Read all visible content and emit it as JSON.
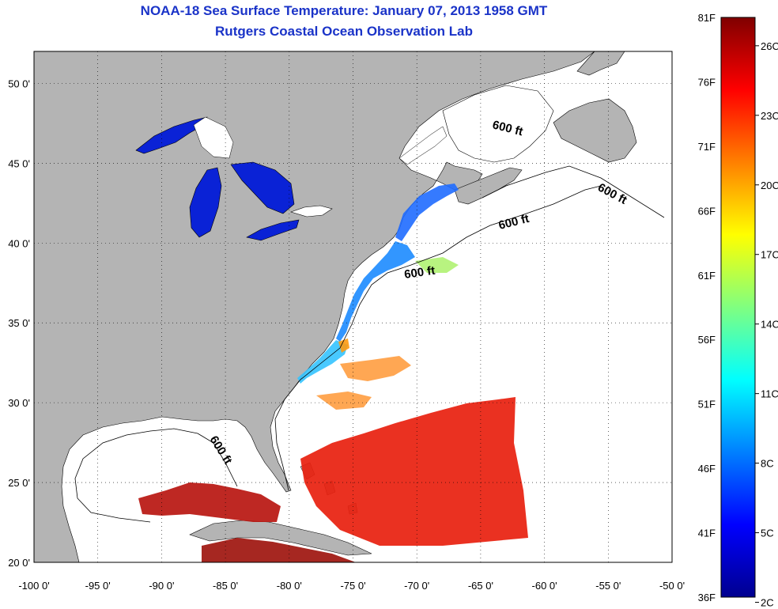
{
  "header": {
    "title": "NOAA-18 Sea Surface Temperature:  January 07, 2013 1958 GMT",
    "subtitle": "Rutgers Coastal Ocean Observation Lab"
  },
  "map": {
    "lon_range": [
      -100,
      -50
    ],
    "lat_range": [
      20,
      52
    ],
    "lon_ticks": [
      {
        "v": -100,
        "label": "-100 0'"
      },
      {
        "v": -95,
        "label": "-95 0'"
      },
      {
        "v": -90,
        "label": "-90 0'"
      },
      {
        "v": -85,
        "label": "-85 0'"
      },
      {
        "v": -80,
        "label": "-80 0'"
      },
      {
        "v": -75,
        "label": "-75 0'"
      },
      {
        "v": -70,
        "label": "-70 0'"
      },
      {
        "v": -65,
        "label": "-65 0'"
      },
      {
        "v": -60,
        "label": "-60 0'"
      },
      {
        "v": -55,
        "label": "-55 0'"
      },
      {
        "v": -50,
        "label": "-50 0'"
      }
    ],
    "lat_ticks": [
      {
        "v": 20,
        "label": "20 0'"
      },
      {
        "v": 25,
        "label": "25 0'"
      },
      {
        "v": 30,
        "label": "30 0'"
      },
      {
        "v": 35,
        "label": "35 0'"
      },
      {
        "v": 40,
        "label": "40 0'"
      },
      {
        "v": 45,
        "label": "45 0'"
      },
      {
        "v": 50,
        "label": "50 0'"
      }
    ],
    "isobath_labels": [
      "600 ft",
      "600 ft",
      "600 ft",
      "600 ft",
      "600 ft"
    ],
    "colors": {
      "land": "#b4b4b4",
      "ocean_nodata": "#ffffff",
      "lakes": "#0a22d6"
    }
  },
  "colorbar": {
    "fahrenheit_labels": [
      "81F",
      "76F",
      "71F",
      "66F",
      "61F",
      "56F",
      "51F",
      "46F",
      "41F",
      "36F"
    ],
    "celsius_labels": [
      "26C",
      "23C",
      "20C",
      "17C",
      "14C",
      "11C",
      "8C",
      "5C",
      "2C"
    ],
    "f_range": [
      36,
      81
    ],
    "colormap": [
      "#00008f",
      "#0000ff",
      "#0080ff",
      "#00ffff",
      "#80ff80",
      "#ffff00",
      "#ff8000",
      "#ff0000",
      "#800000"
    ]
  }
}
